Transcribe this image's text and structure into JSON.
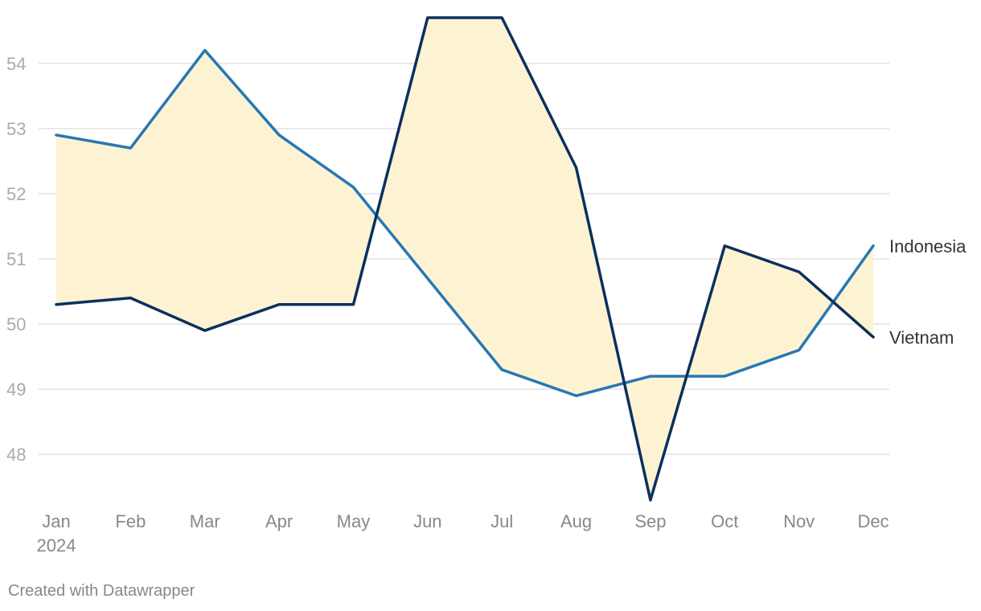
{
  "chart_data": {
    "type": "line",
    "x": [
      "Jan",
      "Feb",
      "Mar",
      "Apr",
      "May",
      "Jun",
      "Jul",
      "Aug",
      "Sep",
      "Oct",
      "Nov",
      "Dec"
    ],
    "x_year_label": "2024",
    "series": [
      {
        "name": "Indonesia",
        "color": "#2777b4",
        "values": [
          52.9,
          52.7,
          54.2,
          52.9,
          52.1,
          50.7,
          49.3,
          48.9,
          49.2,
          49.2,
          49.6,
          51.2
        ]
      },
      {
        "name": "Vietnam",
        "color": "#0b305e",
        "values": [
          50.3,
          50.4,
          49.9,
          50.3,
          50.3,
          54.7,
          54.7,
          52.4,
          47.3,
          51.2,
          50.8,
          49.8
        ]
      }
    ],
    "yticks": [
      48,
      49,
      50,
      51,
      52,
      53,
      54
    ],
    "ylim": [
      47.3,
      54.7
    ],
    "fill_between_color": "#fdf3d3",
    "grid": true,
    "title": "",
    "xlabel": "",
    "ylabel": ""
  },
  "footer": {
    "credit": "Created with Datawrapper"
  }
}
